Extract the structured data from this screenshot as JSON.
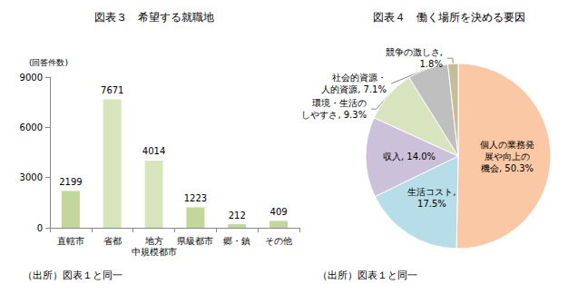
{
  "chart_data": [
    {
      "type": "bar",
      "title": "図表３　希望する就職地",
      "ylabel": "(回答件数)",
      "categories": [
        "直轄市",
        "省都",
        "地方\n中規模都市",
        "県級都市",
        "郷・鎮",
        "その他"
      ],
      "values": [
        2199,
        7671,
        4014,
        1223,
        212,
        409
      ],
      "colors": [
        "#c3d69b",
        "#d8e4bc",
        "#d8e4bc",
        "#c3d69b",
        "#c3d69b",
        "#c3d69b"
      ],
      "ylim": [
        0,
        9000
      ],
      "yticks": [
        0,
        3000,
        6000,
        9000
      ],
      "grid": false,
      "data_labels": true,
      "annotations": [
        "（出所）図表１と同一"
      ]
    },
    {
      "type": "pie",
      "title": "図表４　働く場所を決める要因",
      "categories": [
        "個人の業務発展や向上の機会",
        "生活コスト",
        "収入",
        "環境・生活のしやすさ",
        "社会的資源・人的資源",
        "競争の激しさ"
      ],
      "values": [
        50.3,
        17.5,
        14.0,
        9.3,
        7.1,
        1.8
      ],
      "value_labels": [
        "個人の業務発\n展や向上の\n機会, 50.3%",
        "生活コスト,\n17.5%",
        "収入, 14.0%",
        "環境・生活の\nしやすさ, 9.3%",
        "社会的資源・\n人的資源, 7.1%",
        "競争の激しさ,\n1.8%"
      ],
      "colors": [
        "#fac8a4",
        "#b7dde8",
        "#ccc1da",
        "#d7e4bd",
        "#bfbfbf",
        "#c4bd97"
      ],
      "data_labels": true,
      "annotations": [
        "（出所）図表１と同一"
      ]
    }
  ]
}
